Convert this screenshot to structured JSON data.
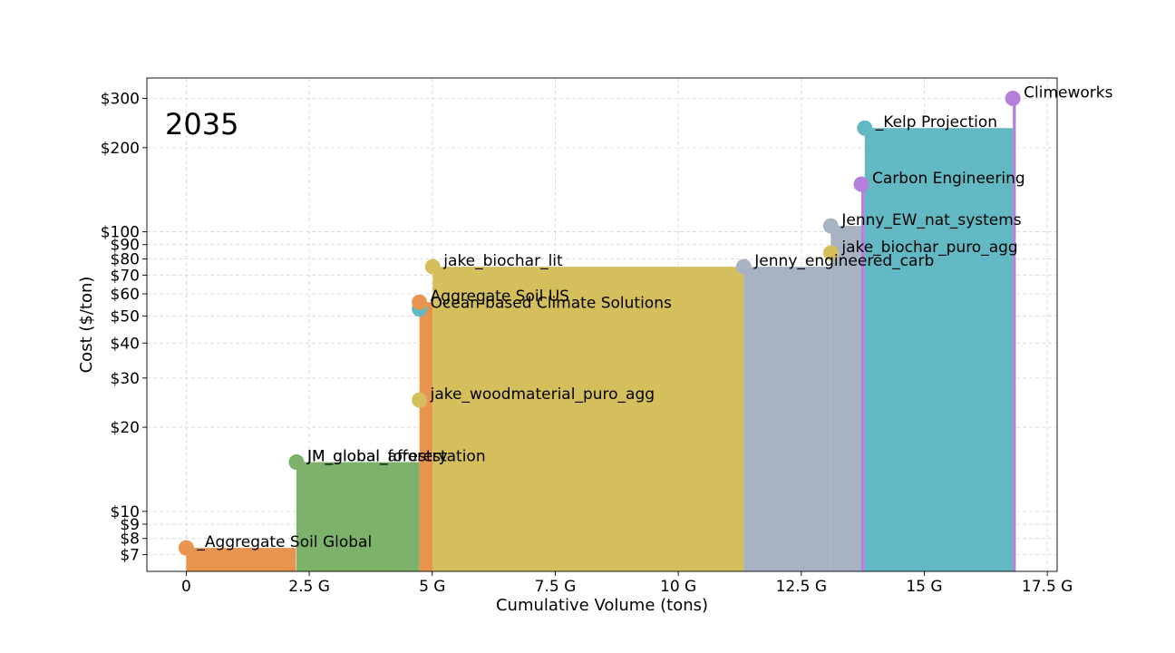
{
  "chart_data": {
    "type": "area",
    "title": "2035",
    "xlabel": "Cumulative Volume (tons)",
    "ylabel": "Cost ($/ton)",
    "xlim": [
      -800000000,
      17700000000
    ],
    "ylim": [
      6.1,
      355
    ],
    "yscale": "log",
    "grid": true,
    "x_ticks": [
      {
        "value": 0,
        "label": "0"
      },
      {
        "value": 2500000000,
        "label": "2.5 G"
      },
      {
        "value": 5000000000,
        "label": "5 G"
      },
      {
        "value": 7500000000,
        "label": "7.5 G"
      },
      {
        "value": 10000000000,
        "label": "10 G"
      },
      {
        "value": 12500000000,
        "label": "12.5 G"
      },
      {
        "value": 15000000000,
        "label": "15 G"
      },
      {
        "value": 17500000000,
        "label": "17.5 G"
      }
    ],
    "y_ticks": [
      {
        "value": 7,
        "label": "$7"
      },
      {
        "value": 8,
        "label": "$8"
      },
      {
        "value": 9,
        "label": "$9"
      },
      {
        "value": 10,
        "label": "$10"
      },
      {
        "value": 20,
        "label": "$20"
      },
      {
        "value": 30,
        "label": "$30"
      },
      {
        "value": 40,
        "label": "$40"
      },
      {
        "value": 50,
        "label": "$50"
      },
      {
        "value": 60,
        "label": "$60"
      },
      {
        "value": 70,
        "label": "$70"
      },
      {
        "value": 80,
        "label": "$80"
      },
      {
        "value": 90,
        "label": "$90"
      },
      {
        "value": 100,
        "label": "$100"
      },
      {
        "value": 200,
        "label": "$200"
      },
      {
        "value": 300,
        "label": "$300"
      }
    ],
    "series": [
      {
        "name": "_Aggregate Soil Global",
        "x_start": 0,
        "x_end": 2230000000,
        "cost": 7.4,
        "color": "#E8944F"
      },
      {
        "name": "JM_global_afforestation",
        "x_start": 2240000000,
        "x_end": 4740000000,
        "cost": 15.0,
        "color": "#7CB26A"
      },
      {
        "name": "JM_global_forestry",
        "x_start": 2240000000,
        "x_end": 2240000000,
        "cost": 15.0,
        "color": "#7CB26A"
      },
      {
        "name": "jake_woodmaterial_puro_agg",
        "x_start": 4740000000,
        "x_end": 4740000000,
        "cost": 25.0,
        "color": "#D4BF5C"
      },
      {
        "name": "Ocean-based Climate Solutions",
        "x_start": 4740000000,
        "x_end": 4740000000,
        "cost": 53.0,
        "color": "#62B8C3"
      },
      {
        "name": "Aggregate Soil US",
        "x_start": 4740000000,
        "x_end": 5010000000,
        "cost": 56.0,
        "color": "#E8944F"
      },
      {
        "name": "jake_biochar_lit",
        "x_start": 5010000000,
        "x_end": 11330000000,
        "cost": 75.0,
        "color": "#D4BF5C"
      },
      {
        "name": "Jenny_engineered_carb",
        "x_start": 11330000000,
        "x_end": 13100000000,
        "cost": 75.0,
        "color": "#A7B3C3"
      },
      {
        "name": "jake_biochar_puro_agg",
        "x_start": 13100000000,
        "x_end": 13100000000,
        "cost": 84.0,
        "color": "#D4BF5C"
      },
      {
        "name": "Jenny_EW_nat_systems",
        "x_start": 13100000000,
        "x_end": 13720000000,
        "cost": 105.0,
        "color": "#A7B3C3"
      },
      {
        "name": "Carbon Engineering",
        "x_start": 13720000000,
        "x_end": 13790000000,
        "cost": 148.0,
        "color": "#B57FDB"
      },
      {
        "name": "_Kelp Projection",
        "x_start": 13790000000,
        "x_end": 16800000000,
        "cost": 235.0,
        "color": "#62B8C3"
      },
      {
        "name": "Climeworks",
        "x_start": 16800000000,
        "x_end": 16860000000,
        "cost": 300.0,
        "color": "#B57FDB"
      }
    ]
  }
}
